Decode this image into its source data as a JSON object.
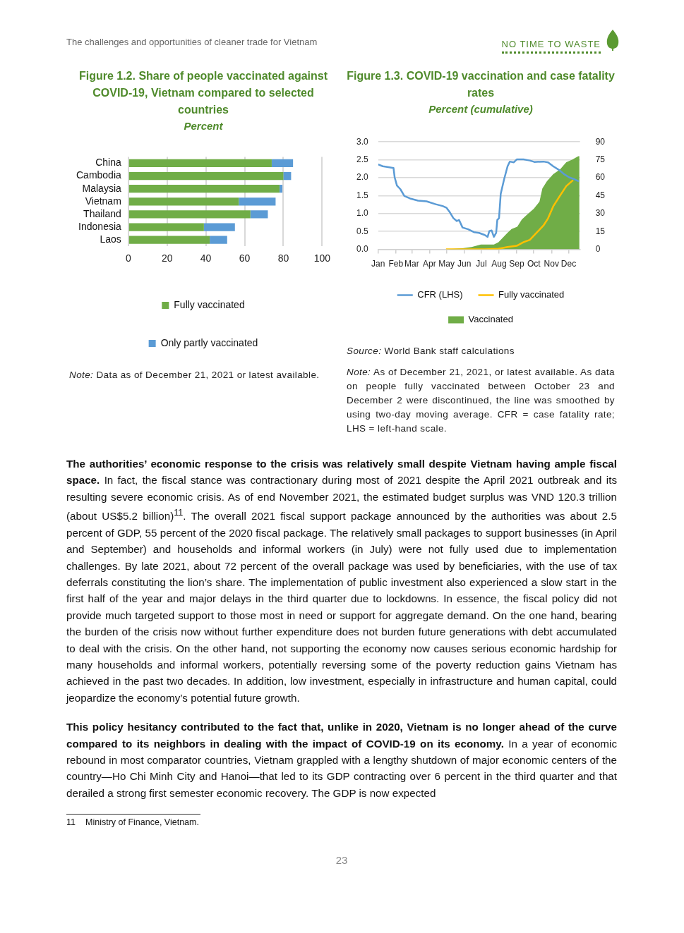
{
  "chart_data": [
    {
      "type": "other",
      "annotations": [
        "The challenges and opportunities of cleaner trade for Vietnam",
        "NO TIME TO WASTE"
      ]
    },
    {
      "type": "bar",
      "title": "Figure 1.2. Share of people vaccinated against COVID-19, Vietnam compared to selected countries",
      "subtitle": "Percent",
      "orientation": "horizontal",
      "stacked": true,
      "categories": [
        "China",
        "Cambodia",
        "Malaysia",
        "Vietnam",
        "Thailand",
        "Indonesia",
        "Laos"
      ],
      "series": [
        {
          "name": "Fully vaccinated",
          "color": "#70ad47",
          "values": [
            74,
            80,
            78,
            57,
            63,
            39,
            42
          ]
        },
        {
          "name": "Only partly vaccinated",
          "color": "#5b9bd5",
          "values": [
            11,
            4,
            1.5,
            19,
            9,
            16,
            9
          ]
        }
      ],
      "xlim": [
        0,
        100
      ],
      "xticks": [
        0,
        20,
        40,
        60,
        80,
        100
      ],
      "grid": "x",
      "legend": "bottom",
      "annotations": [
        "Note: Data as of December 21, 2021 or latest available."
      ]
    },
    {
      "type": "line",
      "title": "Figure 1.3. COVID-19 vaccination and case fatality rates",
      "subtitle": "Percent (cumulative)",
      "xlim": [
        "2021-01-01",
        "2021-12-21"
      ],
      "xticks": [
        {
          "value": "2021-01-01",
          "label": "Jan"
        },
        {
          "value": "2021-02-01",
          "label": "Feb"
        },
        {
          "value": "2021-03-01",
          "label": "Mar"
        },
        {
          "value": "2021-04-01",
          "label": "Apr"
        },
        {
          "value": "2021-05-01",
          "label": "May"
        },
        {
          "value": "2021-06-01",
          "label": "Jun"
        },
        {
          "value": "2021-07-01",
          "label": "Jul"
        },
        {
          "value": "2021-08-01",
          "label": "Aug"
        },
        {
          "value": "2021-09-01",
          "label": "Sep"
        },
        {
          "value": "2021-10-01",
          "label": "Oct"
        },
        {
          "value": "2021-11-01",
          "label": "Nov"
        },
        {
          "value": "2021-12-01",
          "label": "Dec"
        }
      ],
      "ylim": [
        0,
        3
      ],
      "yticks": [
        {
          "value": 0,
          "label": "0.0"
        },
        {
          "value": 0.5,
          "label": "0.5"
        },
        {
          "value": 1,
          "label": "1.0"
        },
        {
          "value": 1.5,
          "label": "1.5"
        },
        {
          "value": 2,
          "label": "2.0"
        },
        {
          "value": 2.5,
          "label": "2.5"
        },
        {
          "value": 3,
          "label": "3.0"
        }
      ],
      "y2lim": [
        0,
        90
      ],
      "y2ticks": [
        0,
        15,
        30,
        45,
        60,
        75,
        90
      ],
      "series": [
        {
          "name": "Vaccinated",
          "type": "area",
          "axis": "y2",
          "color": "#70ad47",
          "x": [
            "2021-04-30",
            "2021-05-29",
            "2021-06-14",
            "2021-06-22",
            "2021-06-30",
            "2021-07-23",
            "2021-07-31",
            "2021-08-08",
            "2021-08-16",
            "2021-08-23",
            "2021-09-02",
            "2021-09-10",
            "2021-09-19",
            "2021-10-01",
            "2021-10-11",
            "2021-10-16",
            "2021-10-24",
            "2021-11-04",
            "2021-11-16",
            "2021-11-27",
            "2021-12-07",
            "2021-12-18",
            "2021-12-20"
          ],
          "values": [
            0,
            1,
            2,
            3,
            4,
            4,
            6,
            10,
            14,
            17,
            19,
            25,
            29,
            34,
            40,
            51,
            57,
            63,
            67,
            73,
            75,
            78,
            78
          ]
        },
        {
          "name": "CFR (LHS)",
          "type": "line",
          "axis": "y",
          "color": "#5b9bd5",
          "x": [
            "2021-01-01",
            "2021-01-09",
            "2021-01-17",
            "2021-01-28",
            "2021-01-30",
            "2021-02-03",
            "2021-02-09",
            "2021-02-16",
            "2021-02-26",
            "2021-03-12",
            "2021-03-27",
            "2021-04-12",
            "2021-04-24",
            "2021-05-01",
            "2021-05-07",
            "2021-05-13",
            "2021-05-19",
            "2021-05-23",
            "2021-05-29",
            "2021-06-08",
            "2021-06-18",
            "2021-06-27",
            "2021-07-07",
            "2021-07-12",
            "2021-07-15",
            "2021-07-19",
            "2021-07-23",
            "2021-07-27",
            "2021-07-29",
            "2021-08-01",
            "2021-08-04",
            "2021-08-10",
            "2021-08-16",
            "2021-08-20",
            "2021-08-27",
            "2021-09-01",
            "2021-09-13",
            "2021-09-24",
            "2021-10-02",
            "2021-10-18",
            "2021-10-26",
            "2021-11-04",
            "2021-11-14",
            "2021-11-24",
            "2021-12-02",
            "2021-12-11",
            "2021-12-19"
          ],
          "values": [
            2.37,
            2.32,
            2.3,
            2.27,
            2.01,
            1.78,
            1.68,
            1.49,
            1.42,
            1.36,
            1.34,
            1.26,
            1.21,
            1.16,
            1.03,
            0.87,
            0.79,
            0.82,
            0.61,
            0.56,
            0.48,
            0.46,
            0.4,
            0.35,
            0.51,
            0.53,
            0.35,
            0.46,
            0.82,
            0.87,
            1.55,
            1.96,
            2.32,
            2.45,
            2.43,
            2.51,
            2.51,
            2.48,
            2.44,
            2.45,
            2.43,
            2.32,
            2.22,
            2.09,
            2.01,
            1.96,
            1.9
          ]
        },
        {
          "name": "Fully vaccinated",
          "type": "line",
          "axis": "y2",
          "color": "#ffc000",
          "x": [
            "2021-04-30",
            "2021-07-07",
            "2021-07-31",
            "2021-08-16",
            "2021-09-01",
            "2021-09-13",
            "2021-09-24",
            "2021-10-06",
            "2021-10-18",
            "2021-10-26",
            "2021-11-04",
            "2021-11-16",
            "2021-11-27",
            "2021-12-09"
          ],
          "values": [
            0,
            0,
            0.5,
            2,
            3,
            6,
            8,
            14,
            20,
            26,
            36,
            45,
            53,
            58
          ]
        }
      ],
      "grid": "y",
      "legend": "bottom",
      "marker": "none",
      "line_style": "solid",
      "annotations": [
        "Source: World Bank staff calculations",
        "Note: As of December 21, 2021, or latest available. As data on people fully vaccinated between October 23 and December 2 were discontinued, the line was smoothed by using two-day moving average. CFR = case fatality rate; LHS = left-hand scale."
      ]
    },
    {
      "type": "other",
      "annotations": [
        "The authorities’ economic response to the crisis was relatively small despite Vietnam having ample fiscal space.",
        "In fact, the fiscal stance was contractionary during most of 2021 despite the April 2021 outbreak and its resulting severe economic crisis. As of end November 2021, the estimated budget surplus was VND 120.3 trillion (about US$5.2 billion)$^{11}$. The overall 2021 fiscal support package announced by the authorities was about 2.5 percent of GDP, 55 percent of the 2020 fiscal package. The relatively small packages to support businesses (in April and September) and households and informal workers (in July) were not fully used due to implementation challenges. By late 2021, about 72 percent of the overall package was used by beneficiaries, with the use of tax deferrals constituting the lion’s share. The implementation of public investment also experienced a slow start in the first half of the year and major delays in the third quarter due to lockdowns. In essence, the fiscal policy did not provide much targeted support to those most in need or support for aggregate demand. On the one hand, bearing the burden of the crisis now without further expenditure does not burden future generations with debt accumulated to deal with the crisis. On the other hand, not supporting the economy now causes serious economic hardship for many households and informal workers, potentially reversing some of the poverty reduction gains Vietnam has achieved in the past two decades. In addition, low investment, especially in infrastructure and human capital, could jeopardize the economy’s potential future growth.",
        "This policy hesitancy contributed to the fact that, unlike in 2020, Vietnam is no longer ahead of the curve compared to its neighbors in dealing with the impact of COVID-19 on its economy.",
        "In a year of economic rebound in most comparator countries, Vietnam grappled with a lengthy shutdown of major economic centers of the country—Ho Chi Minh City and Hanoi—that led to its GDP contracting over 6 percent in the third quarter and that derailed a strong first semester economic recovery. The GDP is now expected",
        "11",
        "Ministry of Finance, Vietnam.",
        "23"
      ]
    }
  ]
}
